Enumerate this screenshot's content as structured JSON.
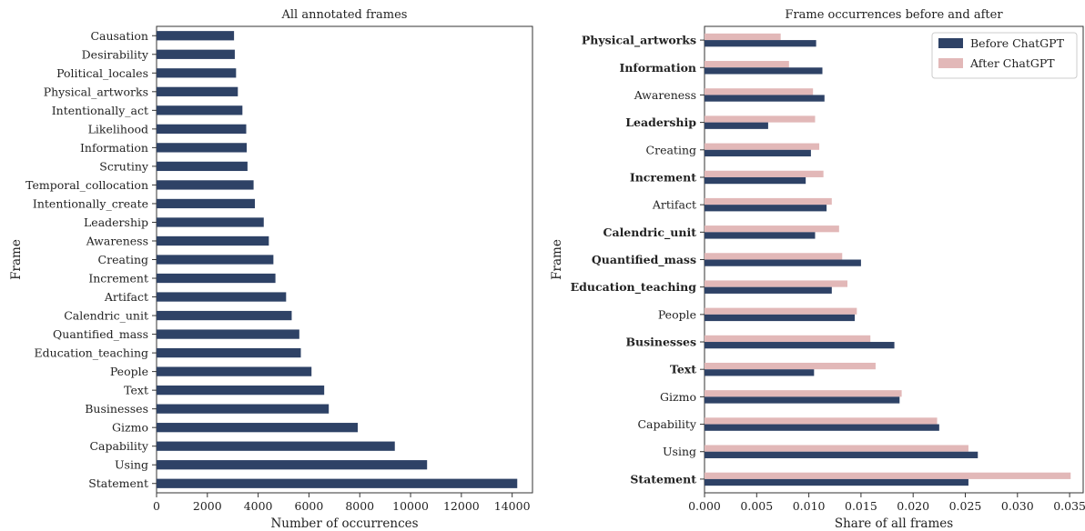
{
  "colors": {
    "before": "#2e4266",
    "after": "#e2b8b8",
    "left_bar": "#2e4266"
  },
  "chart_data": [
    {
      "type": "bar",
      "orientation": "horizontal",
      "title": "All annotated frames",
      "xlabel": "Number of occurrences",
      "ylabel": "Frame",
      "xlim": [
        0,
        14800
      ],
      "xticks": [
        0,
        2000,
        4000,
        6000,
        8000,
        10000,
        12000,
        14000
      ],
      "xtick_labels": [
        "0",
        "2000",
        "4000",
        "6000",
        "8000",
        "10000",
        "12000",
        "14000"
      ],
      "categories": [
        "Causation",
        "Desirability",
        "Political_locales",
        "Physical_artworks",
        "Intentionally_act",
        "Likelihood",
        "Information",
        "Scrutiny",
        "Temporal_collocation",
        "Intentionally_create",
        "Leadership",
        "Awareness",
        "Creating",
        "Increment",
        "Artifact",
        "Calendric_unit",
        "Quantified_mass",
        "Education_teaching",
        "People",
        "Text",
        "Businesses",
        "Gizmo",
        "Capability",
        "Using",
        "Statement"
      ],
      "values": [
        3050,
        3080,
        3130,
        3200,
        3380,
        3530,
        3550,
        3580,
        3820,
        3870,
        4220,
        4420,
        4600,
        4680,
        5100,
        5320,
        5620,
        5680,
        6100,
        6600,
        6780,
        7920,
        9380,
        10650,
        14200
      ],
      "grid": false
    },
    {
      "type": "bar",
      "orientation": "horizontal",
      "title": "Frame occurrences before and after",
      "xlabel": "Share of all frames",
      "ylabel": "Frame",
      "xlim": [
        0,
        0.0363
      ],
      "xticks": [
        0,
        0.005,
        0.01,
        0.015,
        0.02,
        0.025,
        0.03,
        0.035
      ],
      "xtick_labels": [
        "0.000",
        "0.005",
        "0.010",
        "0.015",
        "0.020",
        "0.025",
        "0.030",
        "0.035"
      ],
      "categories": [
        "Physical_artworks",
        "Information",
        "Awareness",
        "Leadership",
        "Creating",
        "Increment",
        "Artifact",
        "Calendric_unit",
        "Quantified_mass",
        "Education_teaching",
        "People",
        "Businesses",
        "Text",
        "Gizmo",
        "Capability",
        "Using",
        "Statement"
      ],
      "bold_categories": [
        "Physical_artworks",
        "Information",
        "Leadership",
        "Increment",
        "Calendric_unit",
        "Quantified_mass",
        "Education_teaching",
        "Businesses",
        "Text",
        "Statement"
      ],
      "series": [
        {
          "name": "Before ChatGPT",
          "values": [
            0.0107,
            0.0113,
            0.0115,
            0.0061,
            0.0102,
            0.0097,
            0.0117,
            0.0106,
            0.015,
            0.0122,
            0.0144,
            0.0182,
            0.0105,
            0.0187,
            0.0225,
            0.0262,
            0.0253
          ]
        },
        {
          "name": "After ChatGPT",
          "values": [
            0.0073,
            0.0081,
            0.0104,
            0.0106,
            0.011,
            0.0114,
            0.0122,
            0.0129,
            0.0132,
            0.0137,
            0.0146,
            0.0159,
            0.0164,
            0.0189,
            0.0223,
            0.0253,
            0.0351
          ]
        }
      ],
      "legend": "top-right",
      "grid": false
    }
  ]
}
